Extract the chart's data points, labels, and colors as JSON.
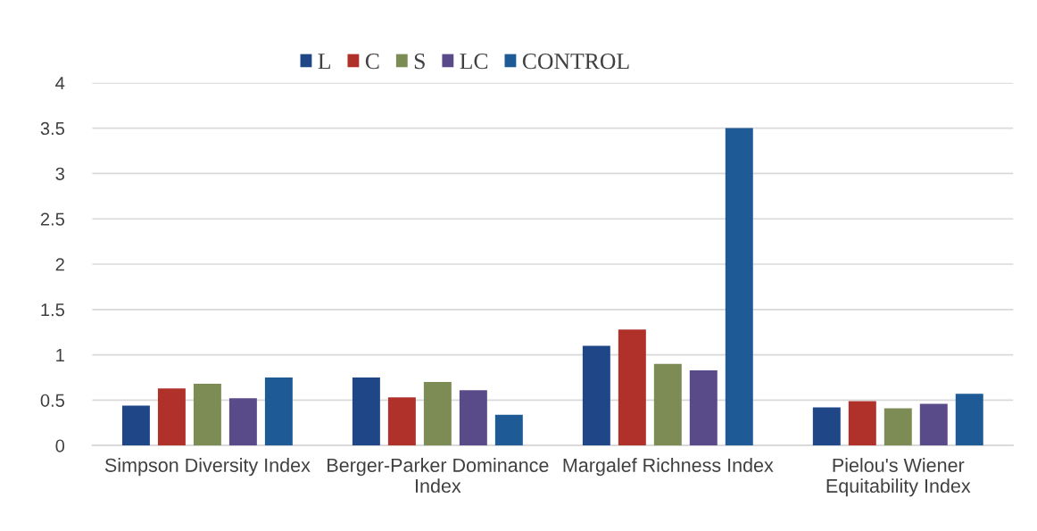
{
  "chart_data": {
    "type": "bar",
    "categories": [
      "Simpson Diversity Index",
      "Berger-Parker Dominance Index",
      "Margalef Richness Index",
      "Pielou's Wiener Equitability Index"
    ],
    "series": [
      {
        "name": "L",
        "color": "#1f4788",
        "values": [
          0.44,
          0.75,
          1.1,
          0.42
        ]
      },
      {
        "name": "C",
        "color": "#b0302a",
        "values": [
          0.63,
          0.53,
          1.28,
          0.49
        ]
      },
      {
        "name": "S",
        "color": "#7d8b55",
        "values": [
          0.68,
          0.7,
          0.9,
          0.41
        ]
      },
      {
        "name": "LC",
        "color": "#594a8a",
        "values": [
          0.52,
          0.61,
          0.83,
          0.46
        ]
      },
      {
        "name": "CONTROL",
        "color": "#1e5b96",
        "values": [
          0.75,
          0.34,
          3.5,
          0.57
        ]
      }
    ],
    "ylim": [
      0,
      4
    ],
    "yticks": [
      0,
      0.5,
      1,
      1.5,
      2,
      2.5,
      3,
      3.5,
      4
    ],
    "grid": "y",
    "legend": "top"
  }
}
